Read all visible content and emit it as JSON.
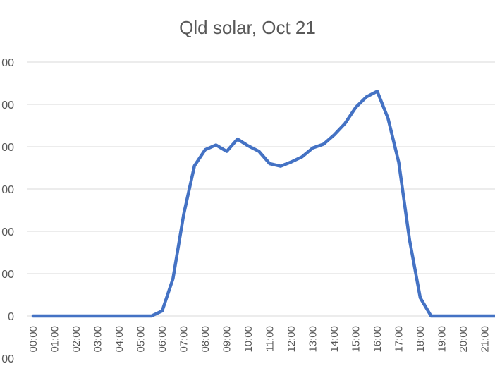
{
  "chart_data": {
    "type": "line",
    "title": "Qld solar, Oct 21",
    "xlabel": "",
    "ylabel": "",
    "grid": true,
    "legend": "none",
    "colors": {
      "line": "#4472C4",
      "grid": "#D9D9D9",
      "text": "#595959"
    },
    "y_tick_labels": [
      "00",
      "00",
      "00",
      "00",
      "00",
      "00",
      "0",
      "00"
    ],
    "x_tick_labels": [
      "00:00",
      "01:00",
      "02:00",
      "03:00",
      "04:00",
      "05:00",
      "06:00",
      "07:00",
      "08:00",
      "09:00",
      "10:00",
      "11:00",
      "12:00",
      "13:00",
      "14:00",
      "15:00",
      "16:00",
      "17:00",
      "18:00",
      "19:00",
      "20:00",
      "21:00"
    ],
    "x_hours": [
      0,
      0.5,
      1,
      1.5,
      2,
      2.5,
      3,
      3.5,
      4,
      4.5,
      5,
      5.5,
      6,
      6.5,
      7,
      7.5,
      8,
      8.5,
      9,
      9.5,
      10,
      10.5,
      11,
      11.5,
      12,
      12.5,
      13,
      13.5,
      14,
      14.5,
      15,
      15.5,
      16,
      16.5,
      17,
      17.5,
      18,
      18.5,
      19,
      19.5,
      20,
      20.5,
      21,
      21.5
    ],
    "values": [
      0,
      0,
      0,
      0,
      0,
      0,
      0,
      0,
      0,
      0,
      0,
      0,
      0.12,
      0.88,
      2.4,
      3.55,
      3.93,
      4.04,
      3.89,
      4.18,
      4.02,
      3.89,
      3.6,
      3.54,
      3.64,
      3.76,
      3.97,
      4.06,
      4.28,
      4.55,
      4.93,
      5.18,
      5.31,
      4.67,
      3.63,
      1.8,
      0.43,
      0,
      0,
      0,
      0,
      0,
      0,
      0
    ],
    "ylim": [
      0,
      6
    ]
  }
}
